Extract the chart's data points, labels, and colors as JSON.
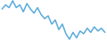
{
  "x": [
    0,
    1,
    2,
    3,
    4,
    5,
    6,
    7,
    8,
    9,
    10,
    11,
    12,
    13,
    14,
    15,
    16,
    17,
    18,
    19,
    20,
    21,
    22,
    23,
    24,
    25,
    26,
    27,
    28,
    29
  ],
  "y": [
    2.0,
    3.5,
    2.5,
    5.0,
    2.5,
    3.5,
    1.0,
    4.0,
    2.0,
    0.5,
    2.5,
    0.0,
    -1.5,
    -0.5,
    -3.5,
    -2.0,
    -5.5,
    -3.5,
    -7.0,
    -9.0,
    -6.5,
    -8.5,
    -6.0,
    -7.0,
    -5.0,
    -6.5,
    -4.5,
    -6.0,
    -5.0,
    -6.5
  ],
  "line_color": "#5aabdc",
  "linewidth": 1.1,
  "background_color": "#ffffff"
}
